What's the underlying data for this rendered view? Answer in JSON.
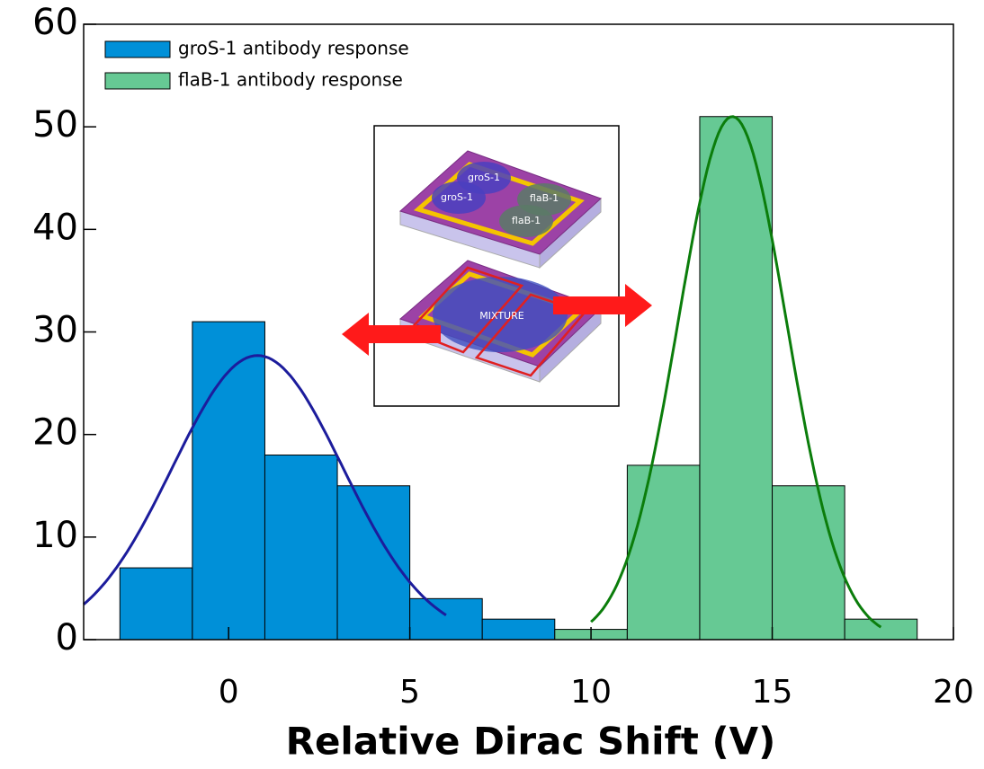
{
  "chart_data": {
    "type": "histogram",
    "xlabel": "Relative Dirac Shift (V)",
    "xlim": [
      -4,
      20
    ],
    "xticks": [
      0,
      5,
      10,
      15,
      20
    ],
    "ylim": [
      0,
      60
    ],
    "yticks": [
      0,
      10,
      20,
      30,
      40,
      50,
      60
    ],
    "legend": "upper left",
    "series": [
      {
        "name": "groS-1 antibody response",
        "color": "#0090d8",
        "bins": [
          -3,
          -1,
          1,
          3,
          5,
          7,
          9
        ],
        "values": [
          7,
          31,
          18,
          15,
          4,
          2
        ]
      },
      {
        "name": "flaB-1 antibody response",
        "color": "#66c994",
        "bins": [
          9,
          11,
          13,
          15,
          17,
          19
        ],
        "values": [
          1,
          17,
          51,
          15,
          2
        ]
      }
    ],
    "fits": [
      {
        "color": "#1c1c9c",
        "amplitude": 27.7,
        "mean": 0.8,
        "sd": 2.35,
        "xrange": [
          -4,
          6
        ]
      },
      {
        "color": "#0b7d0b",
        "amplitude": 51,
        "mean": 13.9,
        "sd": 1.5,
        "xrange": [
          10,
          18
        ]
      }
    ]
  },
  "inset": {
    "labels": [
      "groS-1",
      "groS-1",
      "flaB-1",
      "flaB-1",
      "MIXTURE"
    ]
  }
}
